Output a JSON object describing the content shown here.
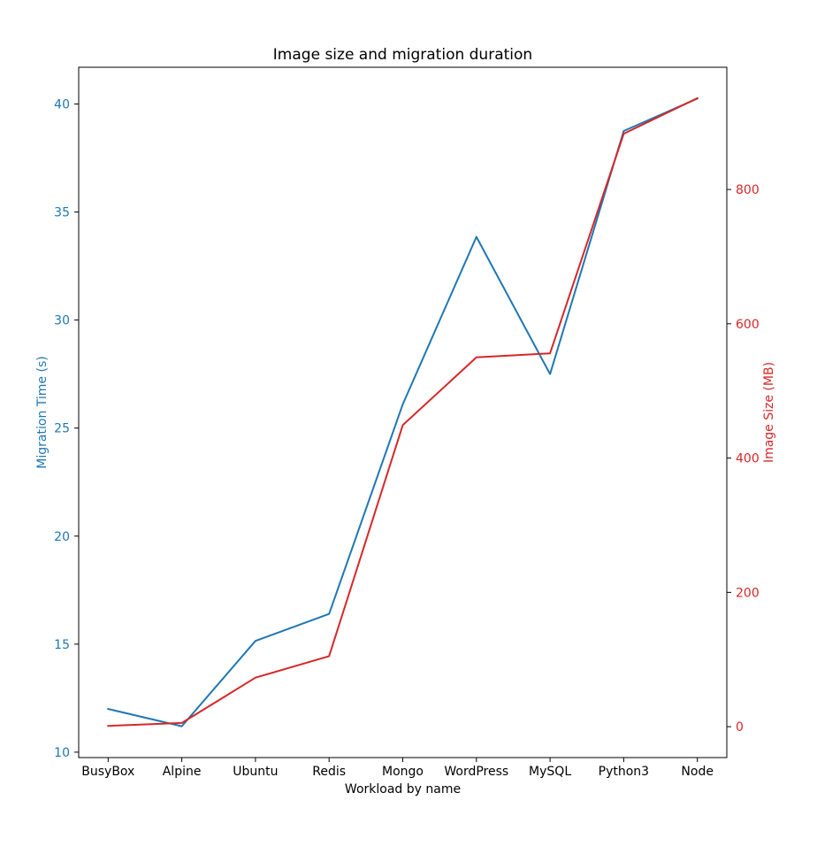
{
  "chart_data": {
    "type": "line",
    "title": "Image size and migration duration",
    "xlabel": "Workload by name",
    "categories": [
      "BusyBox",
      "Alpine",
      "Ubuntu",
      "Redis",
      "Mongo",
      "WordPress",
      "MySQL",
      "Python3",
      "Node"
    ],
    "y_left": {
      "label": "Migration Time (s)",
      "color": "#1f77b4",
      "ylim": [
        9.75,
        41.7
      ],
      "ticks": [
        10,
        15,
        20,
        25,
        30,
        35,
        40
      ]
    },
    "y_right": {
      "label": "Image Size (MB)",
      "color": "#d62728",
      "ylim": [
        -46,
        982
      ],
      "ticks": [
        0,
        200,
        400,
        600,
        800
      ]
    },
    "series": [
      {
        "axis": "left",
        "color": "#1f77b4",
        "values": [
          12.0,
          11.2,
          15.15,
          16.4,
          26.1,
          33.85,
          27.5,
          38.75,
          40.25
        ]
      },
      {
        "axis": "right",
        "color": "#d62728",
        "values": [
          1.2,
          5.6,
          73,
          105,
          449,
          550,
          556,
          883,
          936
        ]
      }
    ],
    "grid": false,
    "legend": "none"
  }
}
